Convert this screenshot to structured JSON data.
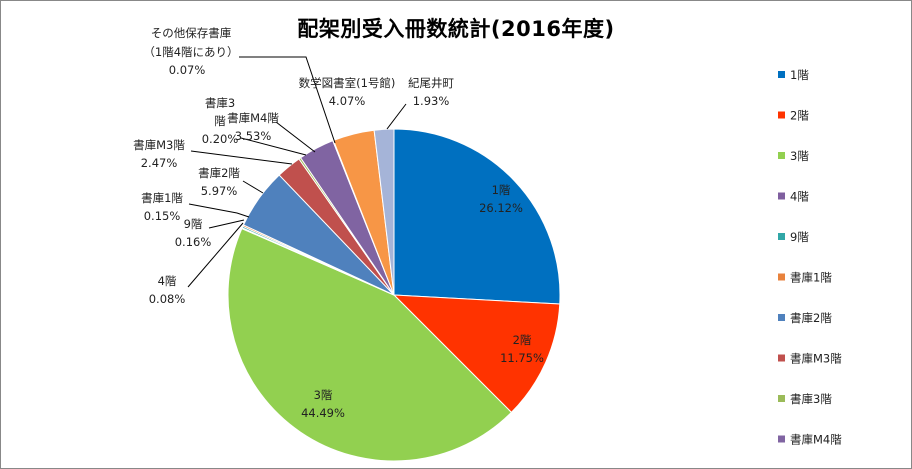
{
  "chart_data": {
    "type": "pie",
    "title": "配架別受入冊数統計(2016年度)",
    "legend_position": "right",
    "slices": [
      {
        "name": "1階",
        "value": 26.12,
        "pct_label": "26.12%",
        "color": "#0070C0"
      },
      {
        "name": "2階",
        "value": 11.75,
        "pct_label": "11.75%",
        "color": "#FF3300"
      },
      {
        "name": "3階",
        "value": 44.49,
        "pct_label": "44.49%",
        "color": "#92D050"
      },
      {
        "name": "4階",
        "value": 0.08,
        "pct_label": "0.08%",
        "color": "#7F5F9F"
      },
      {
        "name": "9階",
        "value": 0.16,
        "pct_label": "0.16%",
        "color": "#31A7A7"
      },
      {
        "name": "書庫1階",
        "value": 0.15,
        "pct_label": "0.15%",
        "color": "#E8823C"
      },
      {
        "name": "書庫2階",
        "value": 5.97,
        "pct_label": "5.97%",
        "color": "#4F81BD"
      },
      {
        "name": "書庫M3階",
        "value": 2.47,
        "pct_label": "2.47%",
        "color": "#C0504D"
      },
      {
        "name": "書庫3階",
        "value": 0.2,
        "pct_label": "0.20%",
        "color": "#9BBB59"
      },
      {
        "name": "書庫M4階",
        "value": 3.53,
        "pct_label": "3.53%",
        "color": "#8064A2"
      },
      {
        "name": "その他保存書庫（1階4階にあり）",
        "value": 0.07,
        "pct_label": "0.07%",
        "color": "#4BACC6"
      },
      {
        "name": "数学図書室(1号館)",
        "value": 4.07,
        "pct_label": "4.07%",
        "color": "#F79646"
      },
      {
        "name": "紀尾井町",
        "value": 1.93,
        "pct_label": "1.93%",
        "color": "#A5B4D8"
      }
    ],
    "legend_items": [
      "1階",
      "2階",
      "3階",
      "4階",
      "9階",
      "書庫1階",
      "書庫2階",
      "書庫M3階",
      "書庫3階",
      "書庫M4階"
    ]
  }
}
